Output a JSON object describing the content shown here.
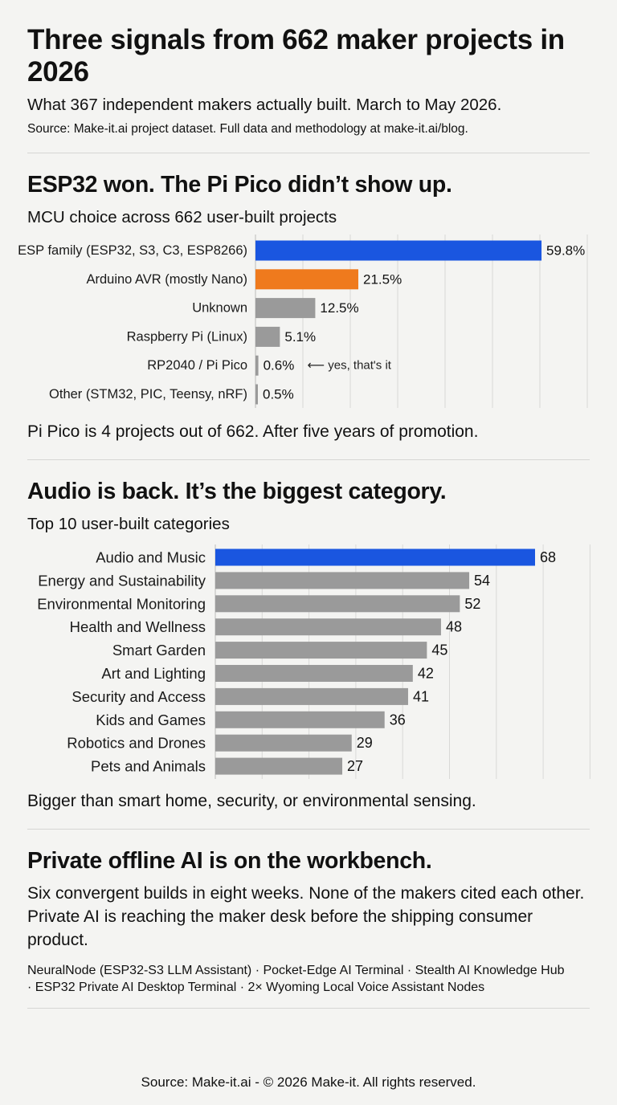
{
  "header": {
    "title": "Three signals from 662 maker projects in 2026",
    "subtitle": "What 367 independent makers actually built. March to May 2026.",
    "source": "Source: Make-it.ai project dataset. Full data and methodology at make-it.ai/blog."
  },
  "section1": {
    "heading": "ESP32 won. The Pi Pico didn’t show up.",
    "chart_title": "MCU choice across 662 user-built projects",
    "note": "Pi Pico is 4 projects out of 662. After five years of promotion.",
    "annotation": "⟵ yes, that's it"
  },
  "section2": {
    "heading": "Audio is back. It’s the biggest category.",
    "chart_title": "Top 10 user-built categories",
    "note": "Bigger than smart home, security, or environmental sensing."
  },
  "section3": {
    "heading": "Private offline AI is on the workbench.",
    "body": "Six convergent builds in eight weeks. None of the makers cited each other. Private AI is reaching the maker desk before the shipping consumer product.",
    "builds_line1": "NeuralNode (ESP32-S3 LLM Assistant) · Pocket-Edge AI Terminal · Stealth AI Knowledge Hub",
    "builds_line2": "· ESP32 Private AI Desktop Terminal · 2× Wyoming Local Voice Assistant Nodes"
  },
  "footer": {
    "text": "Source: Make-it.ai - © 2026 Make-it. All rights reserved."
  },
  "colors": {
    "highlight_blue": "#1a56e0",
    "highlight_orange": "#ef7a1d",
    "bar_gray": "#9a9a9a",
    "grid": "#d9d9d7"
  },
  "chart_data": [
    {
      "type": "bar",
      "orientation": "horizontal",
      "title": "MCU choice across 662 user-built projects",
      "categories": [
        "ESP family (ESP32, S3, C3, ESP8266)",
        "Arduino AVR (mostly Nano)",
        "Unknown",
        "Raspberry Pi (Linux)",
        "RP2040 / Pi Pico",
        "Other (STM32, PIC, Teensy, nRF)"
      ],
      "values": [
        59.8,
        21.5,
        12.5,
        5.1,
        0.6,
        0.5
      ],
      "value_labels": [
        "59.8%",
        "21.5%",
        "12.5%",
        "5.1%",
        "0.6%",
        "0.5%"
      ],
      "bar_colors": [
        "#1a56e0",
        "#ef7a1d",
        "#9a9a9a",
        "#9a9a9a",
        "#9a9a9a",
        "#9a9a9a"
      ],
      "annotation": {
        "category_index": 4,
        "text": "⟵ yes, that's it"
      },
      "xlim": [
        0,
        65
      ],
      "grid": true
    },
    {
      "type": "bar",
      "orientation": "horizontal",
      "title": "Top 10 user-built categories",
      "categories": [
        "Audio and Music",
        "Energy and Sustainability",
        "Environmental Monitoring",
        "Health and Wellness",
        "Smart Garden",
        "Art and Lighting",
        "Security and Access",
        "Kids and Games",
        "Robotics and Drones",
        "Pets and Animals"
      ],
      "values": [
        68,
        54,
        52,
        48,
        45,
        42,
        41,
        36,
        29,
        27
      ],
      "value_labels": [
        "68",
        "54",
        "52",
        "48",
        "45",
        "42",
        "41",
        "36",
        "29",
        "27"
      ],
      "bar_colors": [
        "#1a56e0",
        "#9a9a9a",
        "#9a9a9a",
        "#9a9a9a",
        "#9a9a9a",
        "#9a9a9a",
        "#9a9a9a",
        "#9a9a9a",
        "#9a9a9a",
        "#9a9a9a"
      ],
      "xlim": [
        0,
        68
      ],
      "grid": true
    }
  ]
}
